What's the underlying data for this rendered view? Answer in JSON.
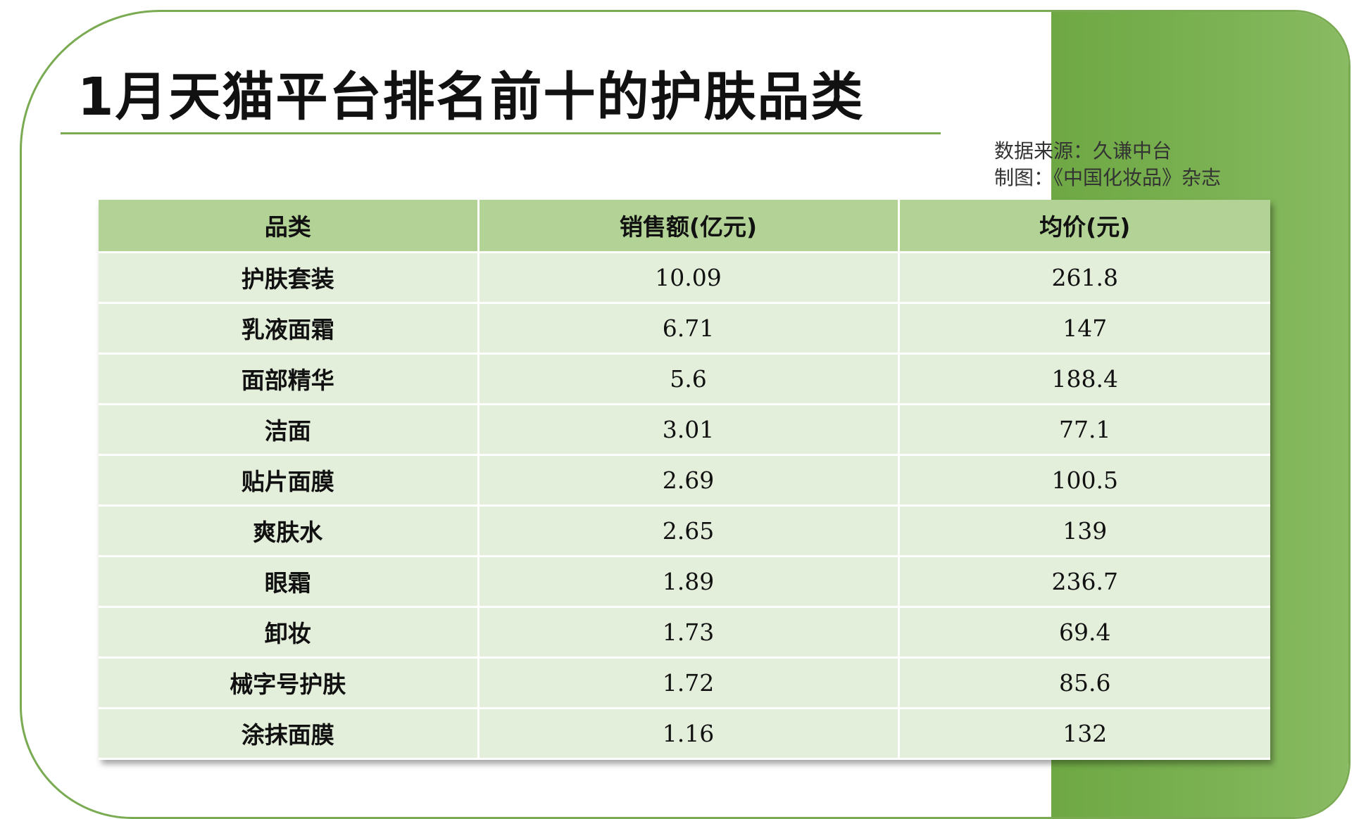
{
  "title": "1月天猫平台排名前十的护肤品类",
  "source": {
    "line1": "数据来源：久谦中台",
    "line2": "制图：《中国化妆品》杂志"
  },
  "table": {
    "headers": [
      "品类",
      "销售额(亿元)",
      "均价(元)"
    ],
    "rows": [
      {
        "category": "护肤套装",
        "sales": "10.09",
        "avg_price": "261.8"
      },
      {
        "category": "乳液面霜",
        "sales": "6.71",
        "avg_price": "147"
      },
      {
        "category": "面部精华",
        "sales": "5.6",
        "avg_price": "188.4"
      },
      {
        "category": "洁面",
        "sales": "3.01",
        "avg_price": "77.1"
      },
      {
        "category": "贴片面膜",
        "sales": "2.69",
        "avg_price": "100.5"
      },
      {
        "category": "爽肤水",
        "sales": "2.65",
        "avg_price": "139"
      },
      {
        "category": "眼霜",
        "sales": "1.89",
        "avg_price": "236.7"
      },
      {
        "category": "卸妆",
        "sales": "1.73",
        "avg_price": "69.4"
      },
      {
        "category": "械字号护肤",
        "sales": "1.72",
        "avg_price": "85.6"
      },
      {
        "category": "涂抹面膜",
        "sales": "1.16",
        "avg_price": "132"
      }
    ]
  },
  "colors": {
    "accent": "#7aab52",
    "header_fill": "#b2d296",
    "row_fill": "#e3eedb"
  }
}
